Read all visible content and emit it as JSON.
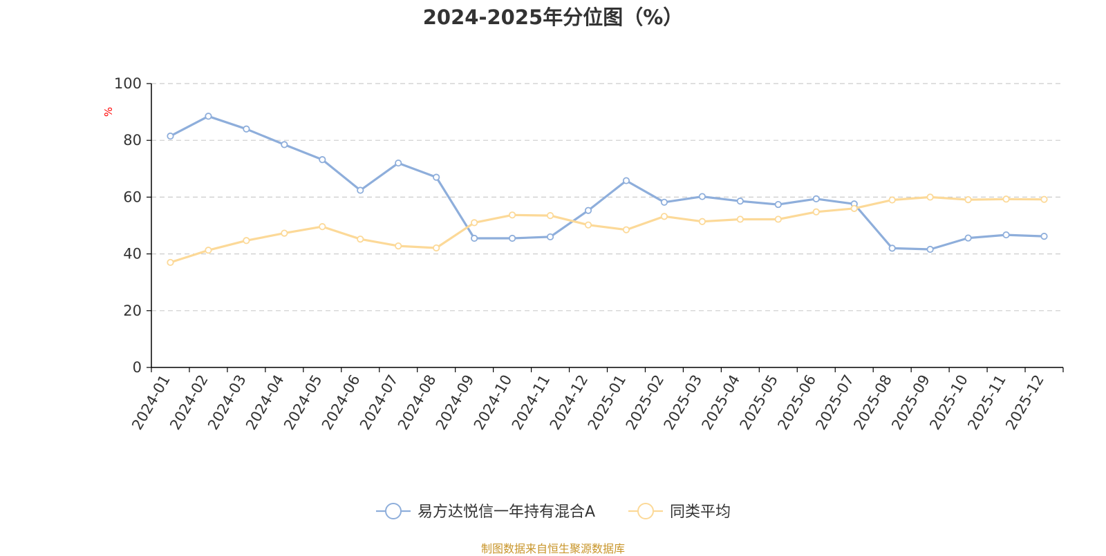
{
  "chart_data": {
    "type": "line",
    "title": "2024-2025年分位图（%）",
    "ylabel": "%",
    "ylim": [
      0,
      100
    ],
    "yticks": [
      "0",
      "20",
      "40",
      "60",
      "80",
      "100"
    ],
    "grid": true,
    "legend_position": "bottom-center",
    "categories": [
      "2024-01",
      "2024-02",
      "2024-03",
      "2024-04",
      "2024-05",
      "2024-06",
      "2024-07",
      "2024-08",
      "2024-09",
      "2024-10",
      "2024-11",
      "2024-12",
      "2025-01",
      "2025-02",
      "2025-03",
      "2025-04",
      "2025-05",
      "2025-06",
      "2025-07",
      "2025-08",
      "2025-09",
      "2025-10",
      "2025-11",
      "2025-12"
    ],
    "series": [
      {
        "name": "易方达悦信一年持有混合A",
        "color": "#8eaedb",
        "values": [
          81.5,
          88.5,
          84,
          78.5,
          73.2,
          62.4,
          72,
          67,
          45.5,
          45.5,
          46,
          55.3,
          65.8,
          58.2,
          60.2,
          58.6,
          57.4,
          59.4,
          57.6,
          42,
          41.6,
          45.6,
          46.7,
          46.2
        ]
      },
      {
        "name": "同类平均",
        "color": "#fcd998",
        "values": [
          37,
          41.3,
          44.7,
          47.3,
          49.6,
          45.2,
          42.8,
          42.1,
          51,
          53.7,
          53.5,
          50.2,
          48.5,
          53.2,
          51.4,
          52.2,
          52.2,
          54.8,
          56,
          59,
          60,
          59.1,
          59.3,
          59.2
        ]
      }
    ]
  },
  "colors": {
    "axis": "#000000",
    "grid": "#cccccc",
    "unit_label": "#ff0000",
    "source_note": "#c8952a"
  },
  "source_note": "制图数据来自恒生聚源数据库"
}
